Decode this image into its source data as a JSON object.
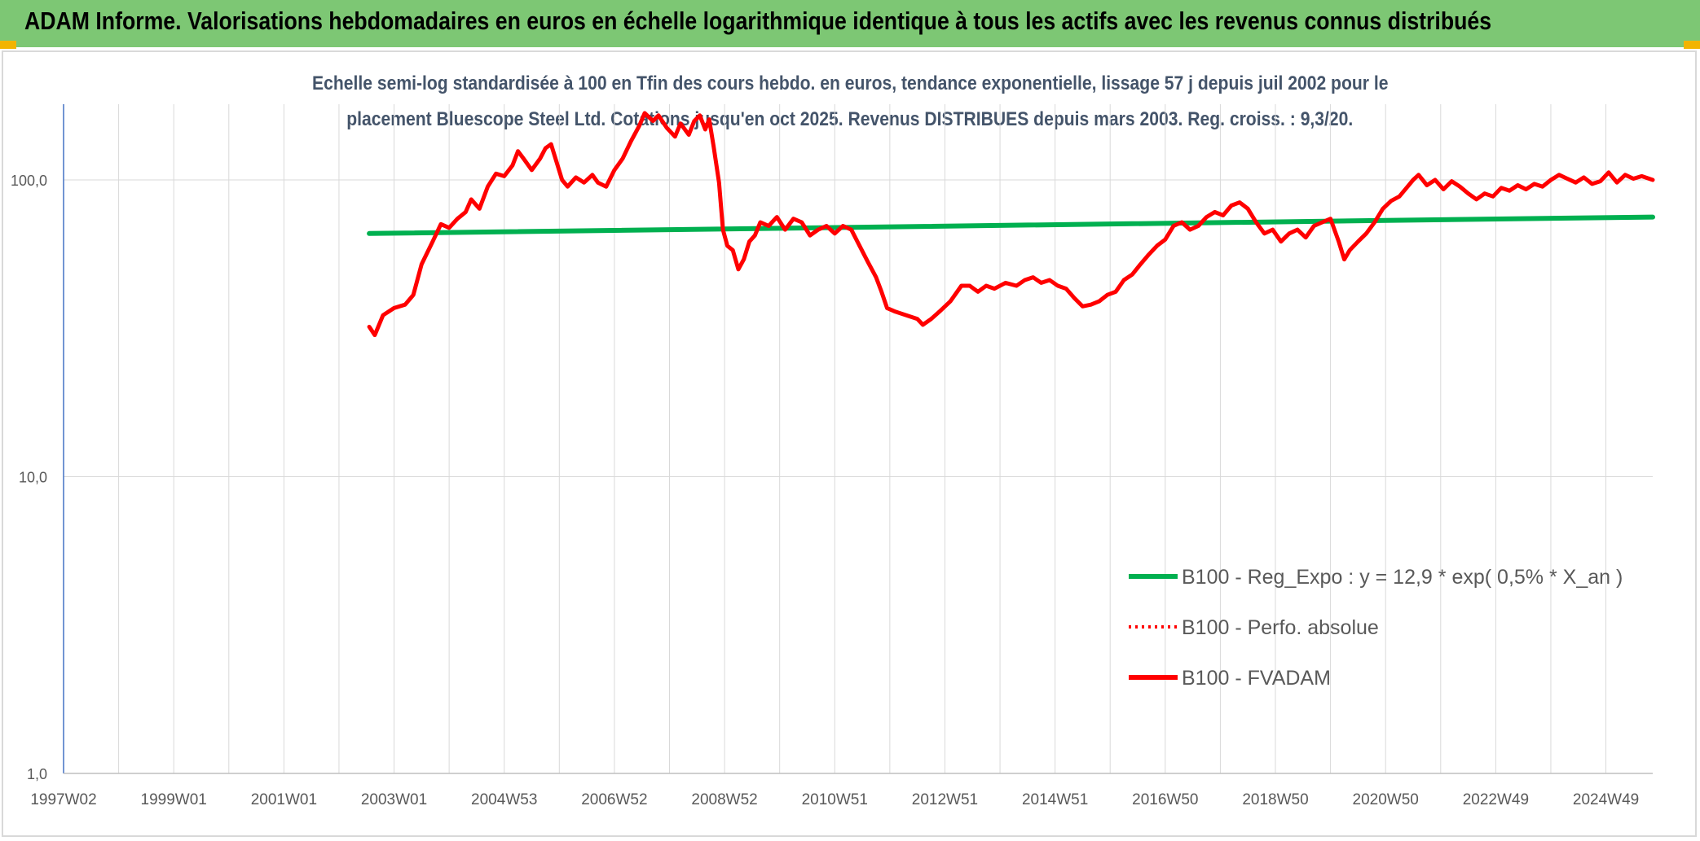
{
  "header": {
    "title": "ADAM Informe. Valorisations hebdomadaires en euros en échelle logarithmique identique à tous les actifs avec les revenus connus distribués"
  },
  "chart_data": {
    "type": "line",
    "title_lines": [
      "Echelle semi-log standardisée à 100 en Tfin des cours hebdo. en euros, tendance exponentielle, lissage 57 j depuis juil 2002 pour le",
      "placement Bluescope Steel Ltd. Cotations jusqu'en oct 2025. Revenus DISTRIBUES depuis mars 2003. Reg. croiss. : 9,3/20."
    ],
    "y_scale": "log",
    "ylim": [
      1,
      180
    ],
    "y_ticks": [
      {
        "value": 1,
        "label": "1,0"
      },
      {
        "value": 10,
        "label": "10,0"
      },
      {
        "value": 100,
        "label": "100,0"
      }
    ],
    "x_range": [
      1997.0,
      2025.85
    ],
    "x_ticks": [
      {
        "x": 1997.0,
        "label": "1997W02"
      },
      {
        "x": 1999.0,
        "label": "1999W01"
      },
      {
        "x": 2001.0,
        "label": "2001W01"
      },
      {
        "x": 2003.0,
        "label": "2003W01"
      },
      {
        "x": 2005.0,
        "label": "2004W53"
      },
      {
        "x": 2007.0,
        "label": "2006W52"
      },
      {
        "x": 2009.0,
        "label": "2008W52"
      },
      {
        "x": 2011.0,
        "label": "2010W51"
      },
      {
        "x": 2013.0,
        "label": "2012W51"
      },
      {
        "x": 2015.0,
        "label": "2014W51"
      },
      {
        "x": 2017.0,
        "label": "2016W50"
      },
      {
        "x": 2019.0,
        "label": "2018W50"
      },
      {
        "x": 2021.0,
        "label": "2020W50"
      },
      {
        "x": 2023.0,
        "label": "2022W49"
      },
      {
        "x": 2025.0,
        "label": "2024W49"
      }
    ],
    "grid": true,
    "legend_position": "bottom-right",
    "series": [
      {
        "name": "B100 - Reg_Expo : y = 12,9 * exp( 0,5% *  X_an )",
        "color": "#00b050",
        "style": "solid",
        "points": [
          [
            2002.55,
            66
          ],
          [
            2025.85,
            75
          ]
        ]
      },
      {
        "name": "B100 - Perfo. absolue",
        "color": "#ff0000",
        "style": "dotted",
        "points": []
      },
      {
        "name": "B100 - FVADAM",
        "color": "#ff0000",
        "style": "solid",
        "points": [
          [
            2002.55,
            32
          ],
          [
            2002.65,
            30
          ],
          [
            2002.8,
            35
          ],
          [
            2003.0,
            37
          ],
          [
            2003.2,
            38
          ],
          [
            2003.35,
            41
          ],
          [
            2003.5,
            52
          ],
          [
            2003.7,
            62
          ],
          [
            2003.85,
            71
          ],
          [
            2004.0,
            69
          ],
          [
            2004.15,
            74
          ],
          [
            2004.3,
            78
          ],
          [
            2004.4,
            86
          ],
          [
            2004.55,
            80
          ],
          [
            2004.7,
            95
          ],
          [
            2004.85,
            105
          ],
          [
            2005.0,
            103
          ],
          [
            2005.15,
            112
          ],
          [
            2005.25,
            125
          ],
          [
            2005.35,
            118
          ],
          [
            2005.5,
            108
          ],
          [
            2005.65,
            118
          ],
          [
            2005.75,
            128
          ],
          [
            2005.85,
            132
          ],
          [
            2005.95,
            115
          ],
          [
            2006.05,
            100
          ],
          [
            2006.15,
            95
          ],
          [
            2006.3,
            102
          ],
          [
            2006.45,
            98
          ],
          [
            2006.6,
            104
          ],
          [
            2006.7,
            98
          ],
          [
            2006.85,
            95
          ],
          [
            2007.0,
            108
          ],
          [
            2007.15,
            118
          ],
          [
            2007.3,
            135
          ],
          [
            2007.45,
            152
          ],
          [
            2007.55,
            168
          ],
          [
            2007.7,
            158
          ],
          [
            2007.8,
            165
          ],
          [
            2007.95,
            150
          ],
          [
            2008.1,
            140
          ],
          [
            2008.2,
            155
          ],
          [
            2008.35,
            142
          ],
          [
            2008.45,
            158
          ],
          [
            2008.55,
            165
          ],
          [
            2008.65,
            148
          ],
          [
            2008.72,
            160
          ],
          [
            2008.8,
            130
          ],
          [
            2008.9,
            98
          ],
          [
            2008.97,
            68
          ],
          [
            2009.05,
            60
          ],
          [
            2009.15,
            58
          ],
          [
            2009.25,
            50
          ],
          [
            2009.35,
            54
          ],
          [
            2009.45,
            62
          ],
          [
            2009.55,
            65
          ],
          [
            2009.65,
            72
          ],
          [
            2009.8,
            70
          ],
          [
            2009.95,
            75
          ],
          [
            2010.1,
            68
          ],
          [
            2010.25,
            74
          ],
          [
            2010.4,
            72
          ],
          [
            2010.55,
            65
          ],
          [
            2010.7,
            68
          ],
          [
            2010.85,
            70
          ],
          [
            2011.0,
            66
          ],
          [
            2011.15,
            70
          ],
          [
            2011.3,
            68
          ],
          [
            2011.45,
            60
          ],
          [
            2011.6,
            53
          ],
          [
            2011.75,
            47
          ],
          [
            2011.85,
            42
          ],
          [
            2011.95,
            37
          ],
          [
            2012.1,
            36
          ],
          [
            2012.3,
            35
          ],
          [
            2012.5,
            34
          ],
          [
            2012.6,
            32.5
          ],
          [
            2012.75,
            34
          ],
          [
            2012.9,
            36
          ],
          [
            2013.1,
            39
          ],
          [
            2013.3,
            44
          ],
          [
            2013.45,
            44
          ],
          [
            2013.6,
            42
          ],
          [
            2013.75,
            44
          ],
          [
            2013.9,
            43
          ],
          [
            2014.1,
            45
          ],
          [
            2014.3,
            44
          ],
          [
            2014.45,
            46
          ],
          [
            2014.6,
            47
          ],
          [
            2014.75,
            45
          ],
          [
            2014.9,
            46
          ],
          [
            2015.05,
            44
          ],
          [
            2015.2,
            43
          ],
          [
            2015.35,
            40
          ],
          [
            2015.5,
            37.5
          ],
          [
            2015.65,
            38
          ],
          [
            2015.8,
            39
          ],
          [
            2015.95,
            41
          ],
          [
            2016.1,
            42
          ],
          [
            2016.25,
            46
          ],
          [
            2016.4,
            48
          ],
          [
            2016.55,
            52
          ],
          [
            2016.7,
            56
          ],
          [
            2016.85,
            60
          ],
          [
            2017.0,
            63
          ],
          [
            2017.15,
            70
          ],
          [
            2017.3,
            72
          ],
          [
            2017.45,
            68
          ],
          [
            2017.6,
            70
          ],
          [
            2017.75,
            75
          ],
          [
            2017.9,
            78
          ],
          [
            2018.05,
            76
          ],
          [
            2018.2,
            82
          ],
          [
            2018.35,
            84
          ],
          [
            2018.5,
            80
          ],
          [
            2018.65,
            72
          ],
          [
            2018.8,
            66
          ],
          [
            2018.95,
            68
          ],
          [
            2019.1,
            62
          ],
          [
            2019.25,
            66
          ],
          [
            2019.4,
            68
          ],
          [
            2019.55,
            64
          ],
          [
            2019.7,
            70
          ],
          [
            2019.85,
            72
          ],
          [
            2020.0,
            74
          ],
          [
            2020.15,
            62
          ],
          [
            2020.25,
            54
          ],
          [
            2020.35,
            58
          ],
          [
            2020.5,
            62
          ],
          [
            2020.65,
            66
          ],
          [
            2020.8,
            72
          ],
          [
            2020.95,
            80
          ],
          [
            2021.1,
            85
          ],
          [
            2021.25,
            88
          ],
          [
            2021.4,
            95
          ],
          [
            2021.5,
            100
          ],
          [
            2021.6,
            104
          ],
          [
            2021.75,
            96
          ],
          [
            2021.9,
            100
          ],
          [
            2022.05,
            93
          ],
          [
            2022.2,
            99
          ],
          [
            2022.35,
            95
          ],
          [
            2022.5,
            90
          ],
          [
            2022.65,
            86
          ],
          [
            2022.8,
            90
          ],
          [
            2022.95,
            88
          ],
          [
            2023.1,
            94
          ],
          [
            2023.25,
            92
          ],
          [
            2023.4,
            96
          ],
          [
            2023.55,
            93
          ],
          [
            2023.7,
            97
          ],
          [
            2023.85,
            95
          ],
          [
            2024.0,
            100
          ],
          [
            2024.15,
            104
          ],
          [
            2024.3,
            101
          ],
          [
            2024.45,
            98
          ],
          [
            2024.6,
            102
          ],
          [
            2024.75,
            97
          ],
          [
            2024.9,
            99
          ],
          [
            2025.05,
            106
          ],
          [
            2025.2,
            98
          ],
          [
            2025.35,
            104
          ],
          [
            2025.5,
            101
          ],
          [
            2025.65,
            103
          ],
          [
            2025.85,
            100
          ]
        ]
      }
    ]
  }
}
